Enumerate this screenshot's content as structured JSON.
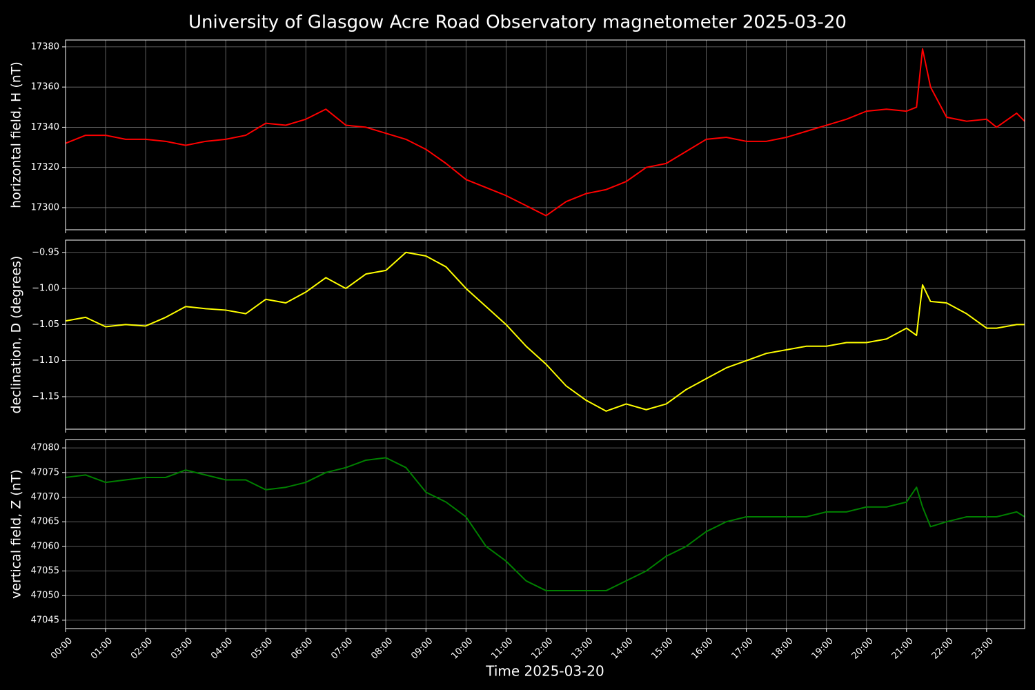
{
  "title": "University of Glasgow Acre Road Observatory magnetometer 2025-03-20",
  "chart_data": [
    {
      "type": "line",
      "ylabel": "horizontal field, H (nT)",
      "color": "#ff0000",
      "grid": true,
      "x": [
        0,
        0.5,
        1,
        1.5,
        2,
        2.5,
        3,
        3.5,
        4,
        4.5,
        5,
        5.5,
        6,
        6.5,
        7,
        7.5,
        8,
        8.5,
        9,
        9.5,
        10,
        10.5,
        11,
        11.5,
        12,
        12.5,
        13,
        13.5,
        14,
        14.5,
        15,
        15.5,
        16,
        16.5,
        17,
        17.5,
        18,
        18.5,
        19,
        19.5,
        20,
        20.5,
        21,
        21.25,
        21.4,
        21.6,
        22,
        22.5,
        23,
        23.25,
        23.75,
        23.95
      ],
      "values": [
        17332,
        17336,
        17336,
        17334,
        17334,
        17333,
        17331,
        17333,
        17334,
        17336,
        17342,
        17341,
        17344,
        17349,
        17341,
        17340,
        17337,
        17334,
        17329,
        17322,
        17314,
        17310,
        17306,
        17301,
        17296,
        17303,
        17307,
        17309,
        17313,
        17320,
        17322,
        17328,
        17334,
        17335,
        17333,
        17333,
        17335,
        17338,
        17341,
        17344,
        17348,
        17349,
        17348,
        17350,
        17379,
        17360,
        17345,
        17343,
        17344,
        17340,
        17347,
        17343
      ],
      "xlim": [
        0,
        23.95
      ],
      "xticks": [
        0,
        1,
        2,
        3,
        4,
        5,
        6,
        7,
        8,
        9,
        10,
        11,
        12,
        13,
        14,
        15,
        16,
        17,
        18,
        19,
        20,
        21,
        22,
        23
      ],
      "ylim": [
        17289,
        17383.4
      ],
      "yticks": [
        17300,
        17320,
        17340,
        17360,
        17380
      ]
    },
    {
      "type": "line",
      "ylabel": "declination, D (degrees)",
      "color": "#ffff00",
      "grid": true,
      "x": [
        0,
        0.5,
        1,
        1.5,
        2,
        2.5,
        3,
        3.5,
        4,
        4.5,
        5,
        5.5,
        6,
        6.5,
        7,
        7.5,
        8,
        8.5,
        9,
        9.5,
        10,
        10.5,
        11,
        11.5,
        12,
        12.5,
        13,
        13.5,
        14,
        14.5,
        15,
        15.5,
        16,
        16.5,
        17,
        17.5,
        18,
        18.5,
        19,
        19.5,
        20,
        20.5,
        21,
        21.25,
        21.4,
        21.6,
        22,
        22.5,
        23,
        23.25,
        23.75,
        23.95
      ],
      "values": [
        -1.045,
        -1.04,
        -1.053,
        -1.05,
        -1.052,
        -1.04,
        -1.025,
        -1.028,
        -1.03,
        -1.035,
        -1.015,
        -1.02,
        -1.005,
        -0.985,
        -1.0,
        -0.98,
        -0.975,
        -0.95,
        -0.955,
        -0.97,
        -1.0,
        -1.025,
        -1.05,
        -1.08,
        -1.105,
        -1.135,
        -1.155,
        -1.17,
        -1.16,
        -1.168,
        -1.16,
        -1.14,
        -1.125,
        -1.11,
        -1.1,
        -1.09,
        -1.085,
        -1.08,
        -1.08,
        -1.075,
        -1.075,
        -1.07,
        -1.055,
        -1.065,
        -0.995,
        -1.018,
        -1.02,
        -1.035,
        -1.055,
        -1.055,
        -1.05,
        -1.05
      ],
      "xlim": [
        0,
        23.95
      ],
      "xticks": [
        0,
        1,
        2,
        3,
        4,
        5,
        6,
        7,
        8,
        9,
        10,
        11,
        12,
        13,
        14,
        15,
        16,
        17,
        18,
        19,
        20,
        21,
        22,
        23
      ],
      "ylim": [
        -1.195,
        -0.933
      ],
      "yticks": [
        {
          "value": -0.95,
          "label": "−0.95"
        },
        {
          "value": -1.0,
          "label": "−1.00"
        },
        {
          "value": -1.05,
          "label": "−1.05"
        },
        {
          "value": -1.1,
          "label": "−1.10"
        },
        {
          "value": -1.15,
          "label": "−1.15"
        }
      ]
    },
    {
      "type": "line",
      "ylabel": "vertical field, Z (nT)",
      "xlabel": "Time 2025-03-20",
      "color": "#008000",
      "grid": true,
      "x": [
        0,
        0.5,
        1,
        1.5,
        2,
        2.5,
        3,
        3.5,
        4,
        4.5,
        5,
        5.5,
        6,
        6.5,
        7,
        7.5,
        8,
        8.5,
        9,
        9.5,
        10,
        10.5,
        11,
        11.5,
        12,
        12.5,
        13,
        13.5,
        14,
        14.5,
        15,
        15.5,
        16,
        16.5,
        17,
        17.5,
        18,
        18.5,
        19,
        19.5,
        20,
        20.5,
        21,
        21.25,
        21.4,
        21.6,
        22,
        22.5,
        23,
        23.25,
        23.75,
        23.95
      ],
      "values": [
        47074,
        47074.5,
        47073,
        47073.5,
        47074,
        47074,
        47075.5,
        47074.5,
        47073.5,
        47073.5,
        47071.5,
        47072,
        47073,
        47075,
        47076,
        47077.5,
        47078,
        47076,
        47071,
        47069,
        47066,
        47060,
        47057,
        47053,
        47051,
        47051,
        47051,
        47051,
        47053,
        47055,
        47058,
        47060,
        47063,
        47065,
        47066,
        47066,
        47066,
        47066,
        47067,
        47067,
        47068,
        47068,
        47069,
        47072,
        47068,
        47064,
        47065,
        47066,
        47066,
        47066,
        47067,
        47066
      ],
      "xlim": [
        0,
        23.95
      ],
      "xticks": [
        {
          "value": 0,
          "label": "00:00"
        },
        {
          "value": 1,
          "label": "01:00"
        },
        {
          "value": 2,
          "label": "02:00"
        },
        {
          "value": 3,
          "label": "03:00"
        },
        {
          "value": 4,
          "label": "04:00"
        },
        {
          "value": 5,
          "label": "05:00"
        },
        {
          "value": 6,
          "label": "06:00"
        },
        {
          "value": 7,
          "label": "07:00"
        },
        {
          "value": 8,
          "label": "08:00"
        },
        {
          "value": 9,
          "label": "09:00"
        },
        {
          "value": 10,
          "label": "10:00"
        },
        {
          "value": 11,
          "label": "11:00"
        },
        {
          "value": 12,
          "label": "12:00"
        },
        {
          "value": 13,
          "label": "13:00"
        },
        {
          "value": 14,
          "label": "14:00"
        },
        {
          "value": 15,
          "label": "15:00"
        },
        {
          "value": 16,
          "label": "16:00"
        },
        {
          "value": 17,
          "label": "17:00"
        },
        {
          "value": 18,
          "label": "18:00"
        },
        {
          "value": 19,
          "label": "19:00"
        },
        {
          "value": 20,
          "label": "20:00"
        },
        {
          "value": 21,
          "label": "21:00"
        },
        {
          "value": 22,
          "label": "22:00"
        },
        {
          "value": 23,
          "label": "23:00"
        }
      ],
      "ylim": [
        47043.3,
        47081.7
      ],
      "yticks": [
        47045,
        47050,
        47055,
        47060,
        47065,
        47070,
        47075,
        47080
      ]
    }
  ]
}
